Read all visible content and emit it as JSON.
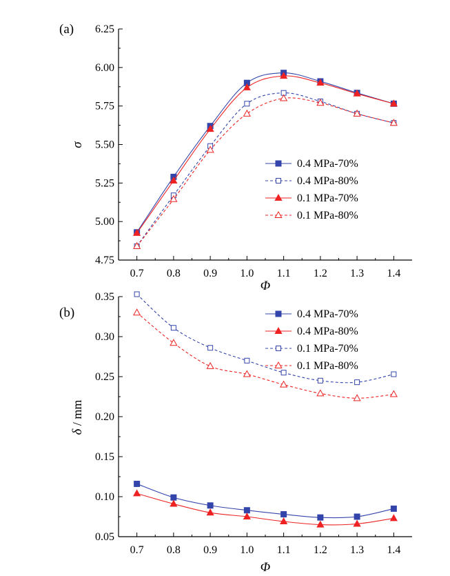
{
  "chart_data": [
    {
      "type": "line",
      "panel_label": "(a)",
      "xlabel": "Φ",
      "ylabel": "σ",
      "ylabel_unit": "",
      "x": [
        0.7,
        0.8,
        0.9,
        1.0,
        1.1,
        1.2,
        1.3,
        1.4
      ],
      "xlim": [
        0.65,
        1.45
      ],
      "ylim": [
        4.75,
        6.25
      ],
      "xticks": [
        "0.7",
        "0.8",
        "0.9",
        "1.0",
        "1.1",
        "1.2",
        "1.3",
        "1.4"
      ],
      "yticks": [
        "4.75",
        "5.00",
        "5.25",
        "5.50",
        "5.75",
        "6.00",
        "6.25"
      ],
      "grid": false,
      "legend_position": "center-right",
      "series": [
        {
          "name": "0.4 MPa-70%",
          "color": "#3344aa",
          "marker": "square",
          "filled": true,
          "dashed": false,
          "values": [
            4.93,
            5.29,
            5.62,
            5.9,
            5.965,
            5.91,
            5.835,
            5.765
          ]
        },
        {
          "name": "0.4 MPa-80%",
          "color": "#3344aa",
          "marker": "square",
          "filled": false,
          "dashed": true,
          "values": [
            4.84,
            5.17,
            5.49,
            5.765,
            5.835,
            5.78,
            5.7,
            5.64
          ]
        },
        {
          "name": "0.1 MPa-70%",
          "color": "#ee2222",
          "marker": "triangle",
          "filled": true,
          "dashed": false,
          "values": [
            4.925,
            5.265,
            5.6,
            5.87,
            5.945,
            5.9,
            5.83,
            5.765
          ]
        },
        {
          "name": "0.1 MPa-80%",
          "color": "#ee2222",
          "marker": "triangle",
          "filled": false,
          "dashed": true,
          "values": [
            4.84,
            5.145,
            5.465,
            5.7,
            5.8,
            5.77,
            5.7,
            5.64
          ]
        }
      ]
    },
    {
      "type": "line",
      "panel_label": "(b)",
      "xlabel": "Φ",
      "ylabel": "δ",
      "ylabel_unit": " / mm",
      "x": [
        0.7,
        0.8,
        0.9,
        1.0,
        1.1,
        1.2,
        1.3,
        1.4
      ],
      "xlim": [
        0.65,
        1.45
      ],
      "ylim": [
        0.05,
        0.35
      ],
      "xticks": [
        "0.7",
        "0.8",
        "0.9",
        "1.0",
        "1.1",
        "1.2",
        "1.3",
        "1.4"
      ],
      "yticks": [
        "0.05",
        "0.10",
        "0.15",
        "0.20",
        "0.25",
        "0.30",
        "0.35"
      ],
      "grid": false,
      "legend_position": "top-right",
      "series": [
        {
          "name": "0.4 MPa-70%",
          "color": "#3344aa",
          "marker": "square",
          "filled": true,
          "dashed": false,
          "values": [
            0.116,
            0.099,
            0.089,
            0.083,
            0.078,
            0.074,
            0.075,
            0.085
          ]
        },
        {
          "name": "0.4 MPa-80%",
          "color": "#ee2222",
          "marker": "triangle",
          "filled": true,
          "dashed": false,
          "values": [
            0.104,
            0.091,
            0.08,
            0.075,
            0.069,
            0.065,
            0.066,
            0.073
          ]
        },
        {
          "name": "0.1 MPa-70%",
          "color": "#3344aa",
          "marker": "square",
          "filled": false,
          "dashed": true,
          "values": [
            0.353,
            0.311,
            0.286,
            0.27,
            0.255,
            0.245,
            0.243,
            0.253
          ]
        },
        {
          "name": "0.1 MPa-80%",
          "color": "#ee2222",
          "marker": "triangle",
          "filled": false,
          "dashed": true,
          "values": [
            0.33,
            0.292,
            0.263,
            0.253,
            0.24,
            0.229,
            0.223,
            0.228
          ]
        }
      ]
    }
  ]
}
